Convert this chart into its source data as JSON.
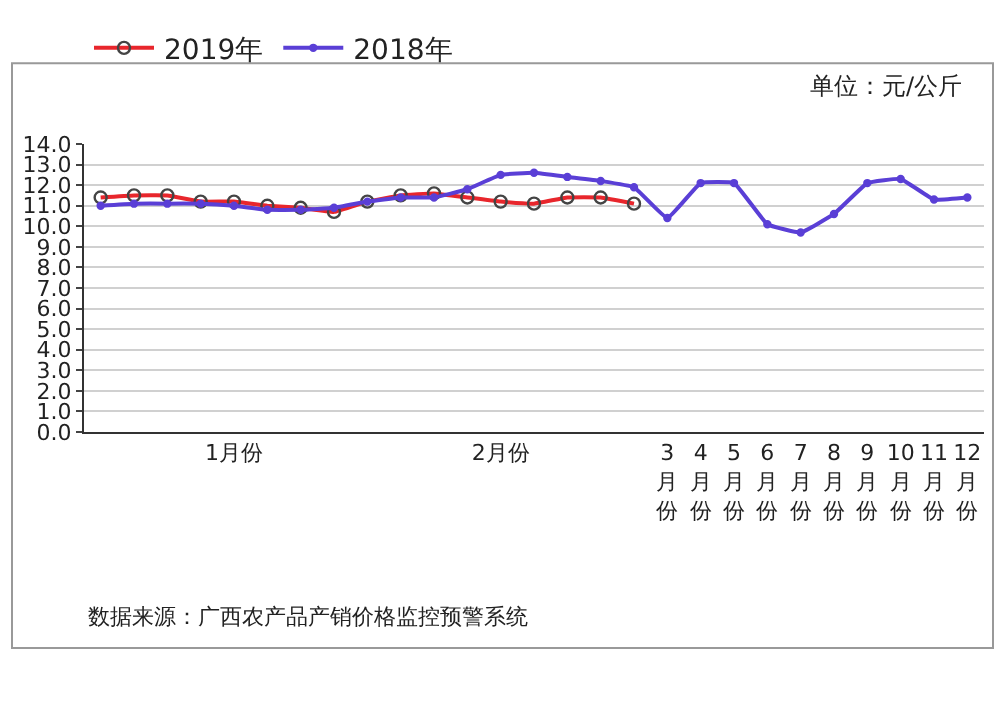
{
  "chart_data": {
    "type": "line",
    "categories": [
      null,
      null,
      null,
      null,
      "1月份",
      null,
      null,
      null,
      null,
      null,
      null,
      null,
      "2月份",
      null,
      null,
      null,
      null,
      "3月份",
      "4月份",
      "5月份",
      "6月份",
      "7月份",
      "8月份",
      "9月份",
      "10月份",
      "11月份",
      "12月份"
    ],
    "series": [
      {
        "name": "2019年",
        "color": "#e8262c",
        "marker": "circle",
        "values": [
          11.4,
          11.5,
          11.5,
          11.2,
          11.2,
          11.0,
          10.9,
          10.7,
          11.2,
          11.5,
          11.6,
          11.4,
          11.2,
          11.1,
          11.4,
          11.4,
          11.1,
          null,
          null,
          null,
          null,
          null,
          null,
          null,
          null,
          null,
          null
        ]
      },
      {
        "name": "2018年",
        "color": "#5a3fd6",
        "marker": "circle",
        "values": [
          11.0,
          11.1,
          11.1,
          11.1,
          11.0,
          10.8,
          10.8,
          10.9,
          11.2,
          11.4,
          11.4,
          11.8,
          12.5,
          12.6,
          12.4,
          12.2,
          11.9,
          10.4,
          12.1,
          12.1,
          10.1,
          9.7,
          10.6,
          12.1,
          12.3,
          11.3,
          11.4
        ]
      }
    ],
    "ylim": [
      0,
      14
    ],
    "yticks": [
      {
        "value": 0,
        "label": "0.0"
      },
      {
        "value": 1,
        "label": "1.0"
      },
      {
        "value": 2,
        "label": "2.0"
      },
      {
        "value": 3,
        "label": "3.0"
      },
      {
        "value": 4,
        "label": "4.0"
      },
      {
        "value": 5,
        "label": "5.0"
      },
      {
        "value": 6,
        "label": "6.0"
      },
      {
        "value": 7,
        "label": "7.0"
      },
      {
        "value": 8,
        "label": "8.0"
      },
      {
        "value": 9,
        "label": "9.0"
      },
      {
        "value": 10,
        "label": "10.0"
      },
      {
        "value": 11,
        "label": "11.0"
      },
      {
        "value": 12,
        "label": "12.0"
      },
      {
        "value": 13,
        "label": "13.0"
      },
      {
        "value": 14,
        "label": "14.0"
      }
    ],
    "grid": "y",
    "legend": "top left",
    "line_style": "solid",
    "annotations": [
      "单位：元/公斤",
      "数据来源：广西农产品产销价格监控预警系统"
    ]
  }
}
